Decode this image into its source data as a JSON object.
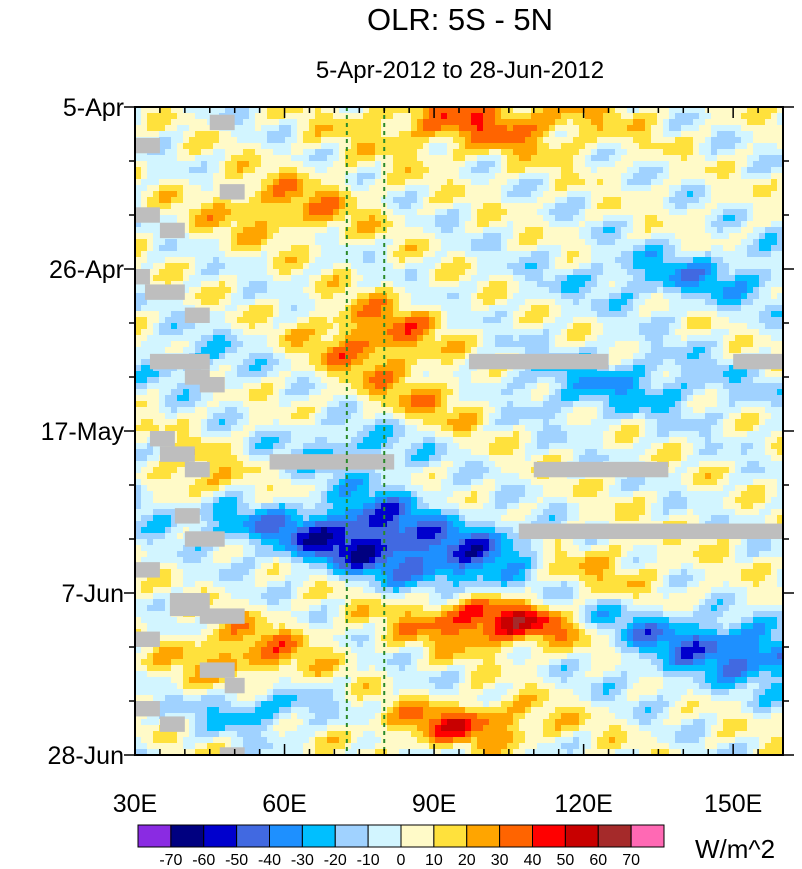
{
  "chart_data": {
    "type": "heatmap",
    "title": "OLR: 5S - 5N",
    "subtitle": "5-Apr-2012 to 28-Jun-2012",
    "units": "W/m^2",
    "x_range": [
      30,
      160
    ],
    "x_ticks": [
      {
        "value": 30,
        "label": "30E"
      },
      {
        "value": 60,
        "label": "60E"
      },
      {
        "value": 90,
        "label": "90E"
      },
      {
        "value": 120,
        "label": "120E"
      },
      {
        "value": 150,
        "label": "150E"
      }
    ],
    "y_range_days": [
      0,
      84
    ],
    "y_ticks": [
      {
        "day": 0,
        "label": "5-Apr"
      },
      {
        "day": 21,
        "label": "26-Apr"
      },
      {
        "day": 42,
        "label": "17-May"
      },
      {
        "day": 63,
        "label": "7-Jun"
      },
      {
        "day": 84,
        "label": "28-Jun"
      }
    ],
    "reference_lines_longitude": [
      72.5,
      80
    ],
    "colorbar": {
      "levels": [
        "-70",
        "-60",
        "-50",
        "-40",
        "-30",
        "-20",
        "-10",
        "0",
        "10",
        "20",
        "30",
        "40",
        "50",
        "60",
        "70"
      ],
      "colors": [
        "#8a2be2",
        "#000080",
        "#0000cd",
        "#4169e1",
        "#1e90ff",
        "#00bfff",
        "#a0d2ff",
        "#d2f5ff",
        "#fffac8",
        "#ffe13c",
        "#ffa500",
        "#ff6400",
        "#ff0000",
        "#c80000",
        "#a52a2a",
        "#ff69b4"
      ]
    },
    "missing_color": "#bebebe",
    "missing_segments": [
      {
        "lon": [
          30,
          35
        ],
        "day": [
          4,
          6
        ]
      },
      {
        "lon": [
          47,
          52
        ],
        "day": [
          10,
          12
        ]
      },
      {
        "lon": [
          45,
          50
        ],
        "day": [
          1,
          3
        ]
      },
      {
        "lon": [
          30,
          35
        ],
        "day": [
          13,
          15
        ]
      },
      {
        "lon": [
          35,
          40
        ],
        "day": [
          15,
          17
        ]
      },
      {
        "lon": [
          30,
          33
        ],
        "day": [
          21,
          23
        ]
      },
      {
        "lon": [
          32,
          40
        ],
        "day": [
          23,
          25
        ]
      },
      {
        "lon": [
          40,
          45
        ],
        "day": [
          26,
          28
        ]
      },
      {
        "lon": [
          33,
          45
        ],
        "day": [
          32,
          34
        ]
      },
      {
        "lon": [
          40,
          45
        ],
        "day": [
          34,
          36
        ]
      },
      {
        "lon": [
          43,
          48
        ],
        "day": [
          35,
          37
        ]
      },
      {
        "lon": [
          33,
          38
        ],
        "day": [
          42,
          44
        ]
      },
      {
        "lon": [
          35,
          42
        ],
        "day": [
          44,
          46
        ]
      },
      {
        "lon": [
          40,
          45
        ],
        "day": [
          46,
          48
        ]
      },
      {
        "lon": [
          57,
          82
        ],
        "day": [
          45,
          47
        ]
      },
      {
        "lon": [
          97,
          125
        ],
        "day": [
          32,
          34
        ]
      },
      {
        "lon": [
          150,
          160
        ],
        "day": [
          32,
          34
        ]
      },
      {
        "lon": [
          110,
          137
        ],
        "day": [
          46,
          48
        ]
      },
      {
        "lon": [
          107,
          160
        ],
        "day": [
          54,
          56
        ]
      },
      {
        "lon": [
          38,
          43
        ],
        "day": [
          52,
          54
        ]
      },
      {
        "lon": [
          40,
          48
        ],
        "day": [
          55,
          57
        ]
      },
      {
        "lon": [
          30,
          35
        ],
        "day": [
          59,
          61
        ]
      },
      {
        "lon": [
          37,
          45
        ],
        "day": [
          63,
          66
        ]
      },
      {
        "lon": [
          43,
          52
        ],
        "day": [
          65,
          67
        ]
      },
      {
        "lon": [
          30,
          35
        ],
        "day": [
          68,
          70
        ]
      },
      {
        "lon": [
          43,
          50
        ],
        "day": [
          72,
          74
        ]
      },
      {
        "lon": [
          48,
          52
        ],
        "day": [
          74,
          76
        ]
      },
      {
        "lon": [
          30,
          35
        ],
        "day": [
          77,
          79
        ]
      },
      {
        "lon": [
          35,
          40
        ],
        "day": [
          79,
          81
        ]
      },
      {
        "lon": [
          47,
          52
        ],
        "day": [
          83,
          84
        ]
      }
    ]
  }
}
